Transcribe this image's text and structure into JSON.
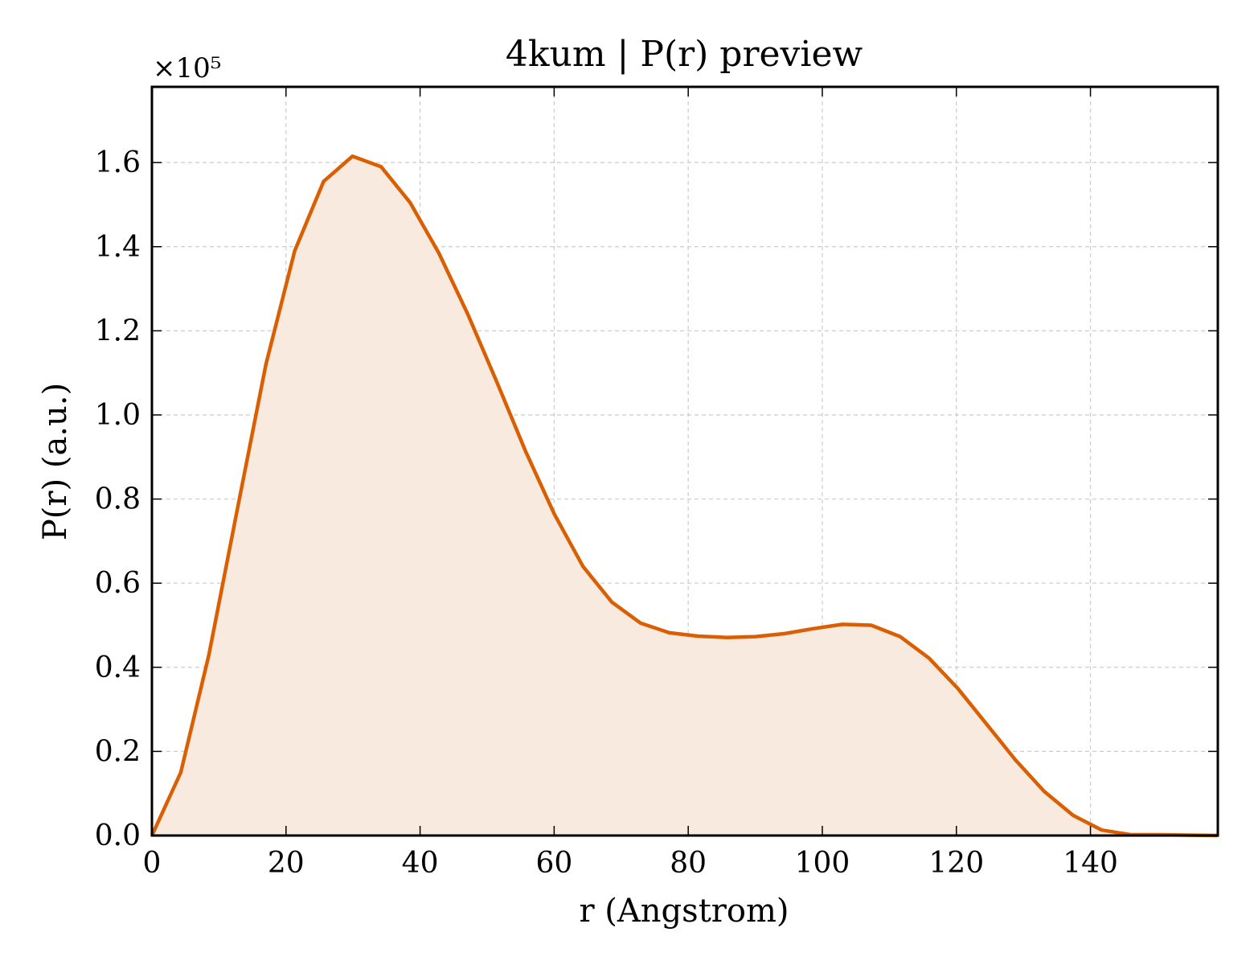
{
  "chart_data": {
    "type": "area",
    "title": "4kum | P(r) preview",
    "xlabel": "r (Angstrom)",
    "ylabel": "P(r) (a.u.)",
    "y_offset_label": "×10⁵",
    "xlim": [
      0,
      159
    ],
    "ylim": [
      0,
      1.78
    ],
    "y_scale_factor": 100000,
    "x_ticks": [
      0,
      20,
      40,
      60,
      80,
      100,
      120,
      140
    ],
    "x_tick_labels": [
      "0",
      "20",
      "40",
      "60",
      "80",
      "100",
      "120",
      "140"
    ],
    "y_ticks": [
      0.0,
      0.2,
      0.4,
      0.6,
      0.8,
      1.0,
      1.2,
      1.4,
      1.6
    ],
    "y_tick_labels": [
      "0.0",
      "0.2",
      "0.4",
      "0.6",
      "0.8",
      "1.0",
      "1.2",
      "1.4",
      "1.6"
    ],
    "grid": true,
    "tick_direction": "in",
    "line_color": "#d95f02",
    "fill_color": "#f9eadf",
    "series": [
      {
        "x": [
          0,
          4.3,
          8.5,
          12.8,
          17.0,
          21.3,
          25.6,
          29.9,
          34.2,
          38.5,
          42.8,
          47.1,
          51.4,
          55.7,
          60.0,
          64.3,
          68.6,
          72.9,
          77.2,
          81.5,
          85.8,
          90.1,
          94.4,
          98.7,
          103.0,
          107.3,
          111.6,
          115.9,
          120.2,
          124.5,
          128.8,
          133.1,
          137.4,
          141.7,
          146.0,
          150.3,
          154.6,
          159.0
        ],
        "y": [
          0.0,
          0.15,
          0.43,
          0.78,
          1.12,
          1.39,
          1.555,
          1.615,
          1.59,
          1.505,
          1.385,
          1.24,
          1.08,
          0.915,
          0.765,
          0.64,
          0.555,
          0.505,
          0.482,
          0.474,
          0.471,
          0.473,
          0.48,
          0.492,
          0.502,
          0.5,
          0.473,
          0.422,
          0.35,
          0.265,
          0.18,
          0.105,
          0.048,
          0.013,
          0.002,
          0.002,
          0.001,
          0.0
        ]
      }
    ]
  }
}
